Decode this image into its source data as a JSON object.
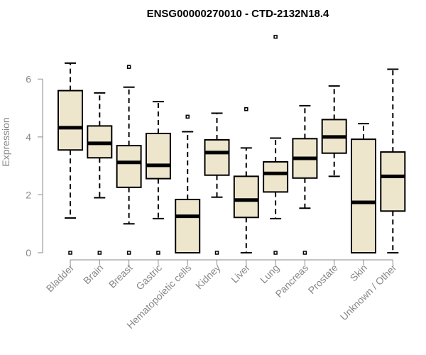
{
  "chart_data": {
    "type": "box",
    "title": "ENSG00000270010 - CTD-2132N18.4",
    "xlabel": "",
    "ylabel": "Expression",
    "ylim": [
      0,
      7.7
    ],
    "yticks": [
      0,
      2,
      4,
      6
    ],
    "grid": false,
    "box_fill": "#ede6cd",
    "categories": [
      "Bladder",
      "Brain",
      "Breast",
      "Gastric",
      "Hematopoietic cells",
      "Kidney",
      "Liver",
      "Lung",
      "Pancreas",
      "Prostate",
      "Skin",
      "Unknown / Other"
    ],
    "boxes": [
      {
        "whisker_low": 1.2,
        "q1": 3.55,
        "median": 4.32,
        "q3": 5.6,
        "whisker_high": 6.55,
        "outliers": [
          0
        ]
      },
      {
        "whisker_low": 1.9,
        "q1": 3.28,
        "median": 3.78,
        "q3": 4.38,
        "whisker_high": 5.52,
        "outliers": [
          0
        ]
      },
      {
        "whisker_low": 1.0,
        "q1": 2.26,
        "median": 3.12,
        "q3": 3.7,
        "whisker_high": 5.72,
        "outliers": [
          0,
          6.42
        ]
      },
      {
        "whisker_low": 1.18,
        "q1": 2.56,
        "median": 3.02,
        "q3": 4.12,
        "whisker_high": 5.22,
        "outliers": [
          0
        ]
      },
      {
        "whisker_low": 0.0,
        "q1": 0.0,
        "median": 1.26,
        "q3": 1.84,
        "whisker_high": 4.18,
        "outliers": [
          4.7
        ]
      },
      {
        "whisker_low": 1.92,
        "q1": 2.68,
        "median": 3.46,
        "q3": 3.9,
        "whisker_high": 4.82,
        "outliers": [
          0
        ]
      },
      {
        "whisker_low": 0.0,
        "q1": 1.22,
        "median": 1.82,
        "q3": 2.64,
        "whisker_high": 3.62,
        "outliers": [
          4.96
        ]
      },
      {
        "whisker_low": 1.18,
        "q1": 2.1,
        "median": 2.74,
        "q3": 3.14,
        "whisker_high": 3.96,
        "outliers": [
          0,
          7.46
        ]
      },
      {
        "whisker_low": 1.54,
        "q1": 2.58,
        "median": 3.26,
        "q3": 3.94,
        "whisker_high": 5.08,
        "outliers": [
          0
        ]
      },
      {
        "whisker_low": 2.64,
        "q1": 3.44,
        "median": 4.0,
        "q3": 4.6,
        "whisker_high": 5.76,
        "outliers": []
      },
      {
        "whisker_low": 0.0,
        "q1": 0.0,
        "median": 1.74,
        "q3": 3.92,
        "whisker_high": 4.46,
        "outliers": []
      },
      {
        "whisker_low": 0.0,
        "q1": 1.44,
        "median": 2.64,
        "q3": 3.48,
        "whisker_high": 6.34,
        "outliers": []
      }
    ]
  }
}
